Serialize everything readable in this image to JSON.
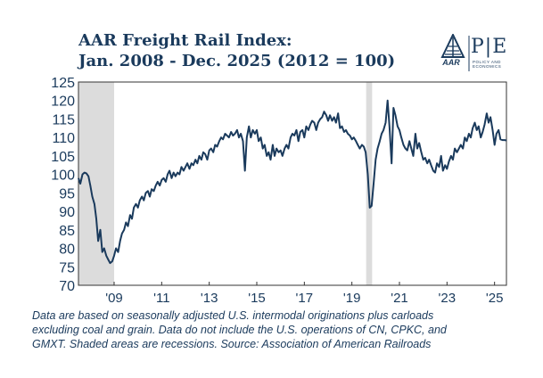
{
  "chart_data": {
    "type": "line",
    "title_line1": "AAR Freight Rail Index:",
    "title_line2": "Jan. 2008 - Dec. 2025 (2012 = 100)",
    "xlabel": "",
    "ylabel": "",
    "ylim": [
      70,
      125
    ],
    "xlim": [
      2008.0,
      2026.0
    ],
    "y_ticks": [
      "125",
      "120",
      "115",
      "110",
      "105",
      "100",
      "95",
      "90",
      "85",
      "80",
      "75",
      "70"
    ],
    "x_ticks": [
      {
        "label": "'09",
        "x": 2009.5
      },
      {
        "label": "'11",
        "x": 2011.5
      },
      {
        "label": "'13",
        "x": 2013.5
      },
      {
        "label": "'15",
        "x": 2015.5
      },
      {
        "label": "'17",
        "x": 2017.5
      },
      {
        "label": "'19",
        "x": 2019.5
      },
      {
        "label": "'21",
        "x": 2021.5
      },
      {
        "label": "'23",
        "x": 2023.5
      },
      {
        "label": "'25",
        "x": 2025.5
      }
    ],
    "recessions": [
      {
        "start": 2008.0,
        "end": 2009.5
      },
      {
        "start": 2020.1,
        "end": 2020.35
      }
    ],
    "series": [
      {
        "name": "AAR Freight Rail Index",
        "color": "#1a3a5c",
        "points": [
          [
            2008.0,
            99.0
          ],
          [
            2008.08,
            97.5
          ],
          [
            2008.17,
            100.0
          ],
          [
            2008.25,
            100.5
          ],
          [
            2008.33,
            100.3
          ],
          [
            2008.42,
            99.5
          ],
          [
            2008.5,
            97.0
          ],
          [
            2008.58,
            94.0
          ],
          [
            2008.67,
            92.0
          ],
          [
            2008.75,
            88.0
          ],
          [
            2008.83,
            82.0
          ],
          [
            2008.92,
            85.0
          ],
          [
            2009.0,
            79.0
          ],
          [
            2009.08,
            80.0
          ],
          [
            2009.17,
            78.0
          ],
          [
            2009.25,
            77.0
          ],
          [
            2009.33,
            76.0
          ],
          [
            2009.42,
            76.5
          ],
          [
            2009.5,
            78.0
          ],
          [
            2009.58,
            80.0
          ],
          [
            2009.67,
            79.0
          ],
          [
            2009.75,
            82.0
          ],
          [
            2009.83,
            84.0
          ],
          [
            2009.92,
            85.0
          ],
          [
            2010.0,
            87.0
          ],
          [
            2010.08,
            86.0
          ],
          [
            2010.17,
            89.0
          ],
          [
            2010.25,
            88.0
          ],
          [
            2010.33,
            91.0
          ],
          [
            2010.42,
            92.0
          ],
          [
            2010.5,
            91.0
          ],
          [
            2010.58,
            93.0
          ],
          [
            2010.67,
            94.0
          ],
          [
            2010.75,
            93.0
          ],
          [
            2010.83,
            95.0
          ],
          [
            2010.92,
            95.5
          ],
          [
            2011.0,
            94.0
          ],
          [
            2011.08,
            96.0
          ],
          [
            2011.17,
            95.5
          ],
          [
            2011.25,
            97.0
          ],
          [
            2011.33,
            98.0
          ],
          [
            2011.42,
            97.0
          ],
          [
            2011.5,
            98.5
          ],
          [
            2011.58,
            99.0
          ],
          [
            2011.67,
            98.0
          ],
          [
            2011.75,
            100.0
          ],
          [
            2011.83,
            101.0
          ],
          [
            2011.92,
            99.0
          ],
          [
            2012.0,
            100.5
          ],
          [
            2012.08,
            99.5
          ],
          [
            2012.17,
            100.5
          ],
          [
            2012.25,
            100.0
          ],
          [
            2012.33,
            102.0
          ],
          [
            2012.42,
            101.0
          ],
          [
            2012.5,
            102.0
          ],
          [
            2012.58,
            103.0
          ],
          [
            2012.67,
            101.5
          ],
          [
            2012.75,
            103.0
          ],
          [
            2012.83,
            102.5
          ],
          [
            2012.92,
            104.0
          ],
          [
            2013.0,
            103.0
          ],
          [
            2013.08,
            105.0
          ],
          [
            2013.17,
            104.0
          ],
          [
            2013.25,
            106.0
          ],
          [
            2013.33,
            105.5
          ],
          [
            2013.42,
            104.0
          ],
          [
            2013.5,
            106.5
          ],
          [
            2013.58,
            107.0
          ],
          [
            2013.67,
            106.0
          ],
          [
            2013.75,
            108.0
          ],
          [
            2013.83,
            107.5
          ],
          [
            2013.92,
            109.0
          ],
          [
            2014.0,
            110.0
          ],
          [
            2014.08,
            109.5
          ],
          [
            2014.17,
            111.0
          ],
          [
            2014.25,
            110.5
          ],
          [
            2014.33,
            110.0
          ],
          [
            2014.42,
            111.5
          ],
          [
            2014.5,
            110.5
          ],
          [
            2014.58,
            111.0
          ],
          [
            2014.67,
            112.0
          ],
          [
            2014.75,
            110.0
          ],
          [
            2014.83,
            111.0
          ],
          [
            2014.92,
            109.0
          ],
          [
            2015.0,
            101.0
          ],
          [
            2015.08,
            110.0
          ],
          [
            2015.17,
            113.0
          ],
          [
            2015.25,
            110.0
          ],
          [
            2015.33,
            112.0
          ],
          [
            2015.42,
            111.0
          ],
          [
            2015.5,
            112.0
          ],
          [
            2015.58,
            109.0
          ],
          [
            2015.67,
            110.0
          ],
          [
            2015.75,
            107.0
          ],
          [
            2015.83,
            108.0
          ],
          [
            2015.92,
            105.0
          ],
          [
            2016.0,
            106.0
          ],
          [
            2016.08,
            104.0
          ],
          [
            2016.17,
            108.0
          ],
          [
            2016.25,
            105.0
          ],
          [
            2016.33,
            107.0
          ],
          [
            2016.42,
            106.0
          ],
          [
            2016.5,
            106.5
          ],
          [
            2016.58,
            105.0
          ],
          [
            2016.67,
            107.0
          ],
          [
            2016.75,
            108.0
          ],
          [
            2016.83,
            107.0
          ],
          [
            2016.92,
            110.0
          ],
          [
            2017.0,
            111.0
          ],
          [
            2017.08,
            110.5
          ],
          [
            2017.17,
            112.0
          ],
          [
            2017.25,
            109.0
          ],
          [
            2017.33,
            111.5
          ],
          [
            2017.42,
            112.0
          ],
          [
            2017.5,
            110.0
          ],
          [
            2017.58,
            113.0
          ],
          [
            2017.67,
            112.0
          ],
          [
            2017.75,
            113.5
          ],
          [
            2017.83,
            114.5
          ],
          [
            2017.92,
            114.0
          ],
          [
            2018.0,
            112.0
          ],
          [
            2018.08,
            114.0
          ],
          [
            2018.17,
            115.0
          ],
          [
            2018.25,
            115.5
          ],
          [
            2018.33,
            117.0
          ],
          [
            2018.42,
            116.0
          ],
          [
            2018.5,
            114.5
          ],
          [
            2018.58,
            116.0
          ],
          [
            2018.67,
            114.5
          ],
          [
            2018.75,
            115.5
          ],
          [
            2018.83,
            114.0
          ],
          [
            2018.92,
            116.5
          ],
          [
            2019.0,
            112.5
          ],
          [
            2019.08,
            113.0
          ],
          [
            2019.17,
            111.5
          ],
          [
            2019.25,
            112.0
          ],
          [
            2019.33,
            111.0
          ],
          [
            2019.42,
            110.5
          ],
          [
            2019.5,
            109.5
          ],
          [
            2019.58,
            110.0
          ],
          [
            2019.67,
            109.0
          ],
          [
            2019.75,
            108.0
          ],
          [
            2019.83,
            107.0
          ],
          [
            2019.92,
            108.0
          ],
          [
            2020.0,
            107.5
          ],
          [
            2020.08,
            106.0
          ],
          [
            2020.17,
            100.0
          ],
          [
            2020.25,
            91.0
          ],
          [
            2020.33,
            91.5
          ],
          [
            2020.42,
            98.0
          ],
          [
            2020.5,
            104.0
          ],
          [
            2020.58,
            107.0
          ],
          [
            2020.67,
            109.0
          ],
          [
            2020.75,
            111.0
          ],
          [
            2020.83,
            112.0
          ],
          [
            2020.92,
            114.0
          ],
          [
            2021.0,
            120.0
          ],
          [
            2021.08,
            113.0
          ],
          [
            2021.17,
            103.0
          ],
          [
            2021.25,
            118.0
          ],
          [
            2021.33,
            116.0
          ],
          [
            2021.42,
            113.0
          ],
          [
            2021.5,
            112.0
          ],
          [
            2021.58,
            110.0
          ],
          [
            2021.67,
            108.0
          ],
          [
            2021.75,
            107.0
          ],
          [
            2021.83,
            106.5
          ],
          [
            2021.92,
            109.0
          ],
          [
            2022.0,
            107.0
          ],
          [
            2022.08,
            105.0
          ],
          [
            2022.17,
            111.0
          ],
          [
            2022.25,
            107.0
          ],
          [
            2022.33,
            108.5
          ],
          [
            2022.42,
            106.0
          ],
          [
            2022.5,
            104.0
          ],
          [
            2022.58,
            104.5
          ],
          [
            2022.67,
            103.0
          ],
          [
            2022.75,
            104.0
          ],
          [
            2022.83,
            102.5
          ],
          [
            2022.92,
            101.0
          ],
          [
            2023.0,
            100.5
          ],
          [
            2023.08,
            103.0
          ],
          [
            2023.17,
            102.0
          ],
          [
            2023.25,
            105.0
          ],
          [
            2023.33,
            101.0
          ],
          [
            2023.42,
            102.5
          ],
          [
            2023.5,
            101.5
          ],
          [
            2023.58,
            103.5
          ],
          [
            2023.67,
            105.0
          ],
          [
            2023.75,
            104.0
          ],
          [
            2023.83,
            107.0
          ],
          [
            2023.92,
            106.0
          ],
          [
            2024.0,
            107.0
          ],
          [
            2024.08,
            108.0
          ],
          [
            2024.17,
            107.0
          ],
          [
            2024.25,
            110.0
          ],
          [
            2024.33,
            109.0
          ],
          [
            2024.42,
            111.0
          ],
          [
            2024.5,
            110.0
          ],
          [
            2024.58,
            112.5
          ],
          [
            2024.67,
            114.0
          ],
          [
            2024.75,
            112.0
          ],
          [
            2024.83,
            113.0
          ],
          [
            2024.92,
            110.0
          ],
          [
            2025.0,
            111.5
          ],
          [
            2025.08,
            113.5
          ],
          [
            2025.17,
            116.5
          ],
          [
            2025.25,
            114.0
          ],
          [
            2025.33,
            115.5
          ],
          [
            2025.42,
            112.0
          ],
          [
            2025.5,
            108.0
          ],
          [
            2025.58,
            111.0
          ],
          [
            2025.67,
            112.0
          ],
          [
            2025.75,
            109.5
          ],
          [
            2025.83,
            109.3
          ],
          [
            2025.92,
            109.3
          ],
          [
            2026.0,
            109.2
          ]
        ]
      }
    ]
  },
  "logo": {
    "aar_text": "AAR",
    "pe_text": "P|E",
    "sub_line1": "POLICY AND",
    "sub_line2": "ECONOMICS"
  },
  "footnote": {
    "line1": "Data are based on seasonally adjusted U.S. intermodal originations plus carloads",
    "line2": "excluding coal and grain. Data do not include the U.S. operations of CN, CPKC, and",
    "line3": "GMXT. Shaded areas are recessions. Source: Association of American Railroads"
  },
  "colors": {
    "navy": "#1a3a5c",
    "recession": "#dcdcdc",
    "axis": "#333333",
    "gold": "#b5953a"
  }
}
